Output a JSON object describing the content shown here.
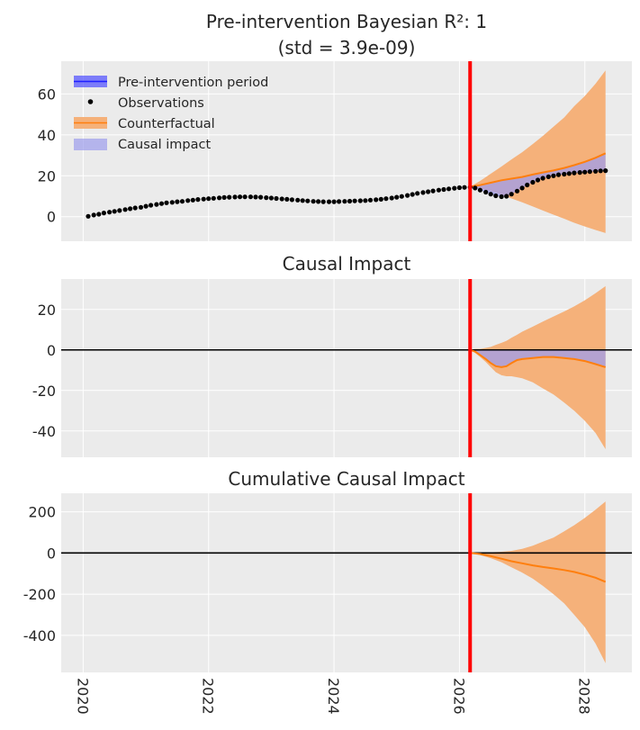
{
  "colors": {
    "background": "#ebebeb",
    "counterfactual": "#ff7f0e",
    "counterfactual_band": "#f5b17a",
    "impact_band": "#9d9ded",
    "pre_band": "#4d4dff",
    "observations": "#000000",
    "intervention": "#ff0000",
    "zero_line": "#000000"
  },
  "chart_data": [
    {
      "type": "line",
      "title_line1": "Pre-intervention Bayesian R²: 1",
      "title_line2": "(std = 3.9e-09)",
      "xlim": [
        2019.65,
        2028.75
      ],
      "ylim": [
        -12,
        76
      ],
      "yticks": [
        0,
        20,
        40,
        60
      ],
      "intervention_x": 2026.17,
      "legend": {
        "position": "top-left",
        "entries": [
          "Pre-intervention period",
          "Observations",
          "Counterfactual",
          "Causal impact"
        ]
      },
      "observations": {
        "x": [
          2020.08,
          2020.17,
          2020.25,
          2020.33,
          2020.42,
          2020.5,
          2020.58,
          2020.67,
          2020.75,
          2020.83,
          2020.92,
          2021.0,
          2021.08,
          2021.17,
          2021.25,
          2021.33,
          2021.42,
          2021.5,
          2021.58,
          2021.67,
          2021.75,
          2021.83,
          2021.92,
          2022.0,
          2022.08,
          2022.17,
          2022.25,
          2022.33,
          2022.42,
          2022.5,
          2022.58,
          2022.67,
          2022.75,
          2022.83,
          2022.92,
          2023.0,
          2023.08,
          2023.17,
          2023.25,
          2023.33,
          2023.42,
          2023.5,
          2023.58,
          2023.67,
          2023.75,
          2023.83,
          2023.92,
          2024.0,
          2024.08,
          2024.17,
          2024.25,
          2024.33,
          2024.42,
          2024.5,
          2024.58,
          2024.67,
          2024.75,
          2024.83,
          2024.92,
          2025.0,
          2025.08,
          2025.17,
          2025.25,
          2025.33,
          2025.42,
          2025.5,
          2025.58,
          2025.67,
          2025.75,
          2025.83,
          2025.92,
          2026.0,
          2026.08,
          2026.17,
          2026.25,
          2026.33,
          2026.42,
          2026.5,
          2026.58,
          2026.67,
          2026.75,
          2026.83,
          2026.92,
          2027.0,
          2027.08,
          2027.17,
          2027.25,
          2027.33,
          2027.42,
          2027.5,
          2027.58,
          2027.67,
          2027.75,
          2027.83,
          2027.92,
          2028.0,
          2028.08,
          2028.17,
          2028.25,
          2028.33
        ],
        "y": [
          0.2,
          0.8,
          1.2,
          1.8,
          2.2,
          2.6,
          3.0,
          3.5,
          3.9,
          4.3,
          4.6,
          5.1,
          5.6,
          6.0,
          6.4,
          6.8,
          7.0,
          7.3,
          7.5,
          7.9,
          8.1,
          8.4,
          8.6,
          8.8,
          9.0,
          9.2,
          9.4,
          9.5,
          9.6,
          9.7,
          9.7,
          9.7,
          9.6,
          9.5,
          9.3,
          9.1,
          8.9,
          8.7,
          8.5,
          8.3,
          8.1,
          7.9,
          7.7,
          7.5,
          7.4,
          7.3,
          7.3,
          7.3,
          7.4,
          7.5,
          7.6,
          7.7,
          7.8,
          7.9,
          8.1,
          8.3,
          8.5,
          8.8,
          9.1,
          9.5,
          9.9,
          10.4,
          10.9,
          11.4,
          11.8,
          12.2,
          12.6,
          13.0,
          13.3,
          13.6,
          13.9,
          14.2,
          14.3,
          14.4,
          14.0,
          13.0,
          12.0,
          11.0,
          10.2,
          9.8,
          10.0,
          11.0,
          12.5,
          14.0,
          15.5,
          16.8,
          17.9,
          18.8,
          19.5,
          20.0,
          20.5,
          20.8,
          21.1,
          21.4,
          21.6,
          21.8,
          22.0,
          22.2,
          22.4,
          22.5
        ]
      },
      "counterfactual": {
        "x": [
          2026.17,
          2026.33,
          2026.5,
          2026.67,
          2026.83,
          2027.0,
          2027.17,
          2027.33,
          2027.5,
          2027.67,
          2027.83,
          2028.0,
          2028.17,
          2028.33
        ],
        "mean": [
          14.6,
          15.4,
          16.6,
          17.8,
          18.6,
          19.4,
          20.6,
          21.6,
          22.6,
          23.8,
          25.2,
          26.8,
          28.8,
          31.0
        ],
        "lower": [
          14.6,
          13.8,
          12.5,
          10.8,
          8.9,
          7.0,
          5.0,
          3.0,
          1.0,
          -1.0,
          -3.0,
          -4.8,
          -6.5,
          -8.0
        ],
        "upper": [
          14.6,
          17.5,
          21.0,
          24.5,
          28.0,
          31.5,
          35.5,
          39.5,
          44.0,
          48.5,
          54.0,
          59.0,
          65.0,
          71.5
        ]
      }
    },
    {
      "type": "line",
      "title": "Causal Impact",
      "xlim": [
        2019.65,
        2028.75
      ],
      "ylim": [
        -53,
        35
      ],
      "yticks": [
        20,
        0,
        -20,
        -40
      ],
      "intervention_x": 2026.17,
      "impact": {
        "x": [
          2026.17,
          2026.25,
          2026.33,
          2026.42,
          2026.5,
          2026.58,
          2026.67,
          2026.75,
          2026.83,
          2026.92,
          2027.0,
          2027.17,
          2027.33,
          2027.5,
          2027.67,
          2027.83,
          2028.0,
          2028.17,
          2028.33
        ],
        "mean": [
          0,
          -0.8,
          -2.5,
          -4.5,
          -6.5,
          -8.0,
          -8.5,
          -8.0,
          -6.5,
          -5.0,
          -4.5,
          -4.0,
          -3.5,
          -3.5,
          -4.0,
          -4.5,
          -5.5,
          -7.0,
          -8.5
        ],
        "lower": [
          0,
          -1.5,
          -3.5,
          -6.0,
          -8.5,
          -11.0,
          -12.5,
          -13.0,
          -13.0,
          -13.5,
          -14.0,
          -16.0,
          -19.0,
          -22.0,
          -26.0,
          -30.0,
          -35.0,
          -41.0,
          -49.0
        ],
        "upper": [
          0,
          0.5,
          0.5,
          1.0,
          1.5,
          2.5,
          3.5,
          4.5,
          6.0,
          7.5,
          9.0,
          11.5,
          14.0,
          16.5,
          19.0,
          21.5,
          24.5,
          28.0,
          31.5
        ]
      }
    },
    {
      "type": "line",
      "title": "Cumulative Causal Impact",
      "xlim": [
        2019.65,
        2028.75
      ],
      "ylim": [
        -580,
        290
      ],
      "yticks": [
        200,
        0,
        -200,
        -400
      ],
      "xticks": [
        "2020",
        "2022",
        "2024",
        "2026",
        "2028"
      ],
      "intervention_x": 2026.17,
      "cumulative": {
        "x": [
          2026.17,
          2026.33,
          2026.5,
          2026.67,
          2026.83,
          2027.0,
          2027.17,
          2027.33,
          2027.5,
          2027.67,
          2027.83,
          2028.0,
          2028.17,
          2028.33
        ],
        "mean": [
          0,
          -5,
          -15,
          -28,
          -40,
          -50,
          -60,
          -68,
          -75,
          -83,
          -92,
          -105,
          -120,
          -140
        ],
        "lower": [
          0,
          -10,
          -25,
          -45,
          -70,
          -95,
          -125,
          -160,
          -200,
          -245,
          -300,
          -360,
          -440,
          -535
        ],
        "upper": [
          0,
          2,
          3,
          6,
          10,
          20,
          35,
          55,
          75,
          105,
          135,
          170,
          210,
          250
        ]
      }
    }
  ]
}
